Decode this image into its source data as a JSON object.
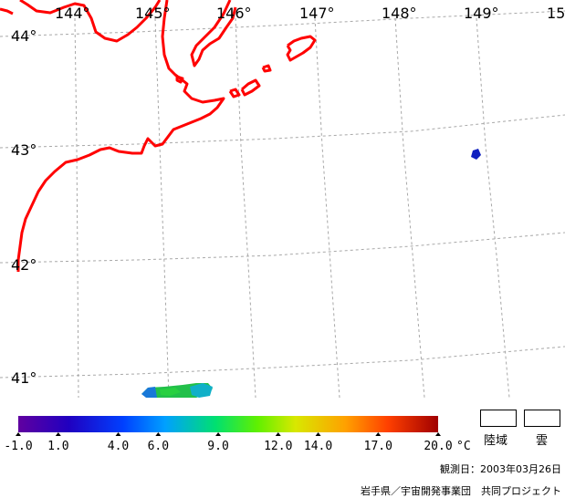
{
  "map": {
    "lon_labels": [
      "144°",
      "145°",
      "146°",
      "147°",
      "148°",
      "149°",
      "15"
    ],
    "lat_labels": [
      "44°",
      "43°",
      "42°",
      "41°"
    ],
    "colors": {
      "coast": "#ff0000",
      "grid": "#a0a0a0",
      "sea_patch": "#1020c0"
    }
  },
  "colorbar": {
    "ticks": [
      "-1.0",
      "1.0",
      "4.0",
      "6.0",
      "9.0",
      "12.0",
      "14.0",
      "17.0",
      "20.0"
    ],
    "unit": "°C",
    "gradient": [
      "#6000a0",
      "#2000c0",
      "#0040ff",
      "#00a0ff",
      "#00e070",
      "#60f000",
      "#d8e800",
      "#ffa000",
      "#ff4000",
      "#a00000"
    ]
  },
  "legend": {
    "land": "陸域",
    "cloud": "雲"
  },
  "observation_date": "観測日：2003年03月26日",
  "credit": "岩手県／宇宙開発事業団　共同プロジェクト"
}
